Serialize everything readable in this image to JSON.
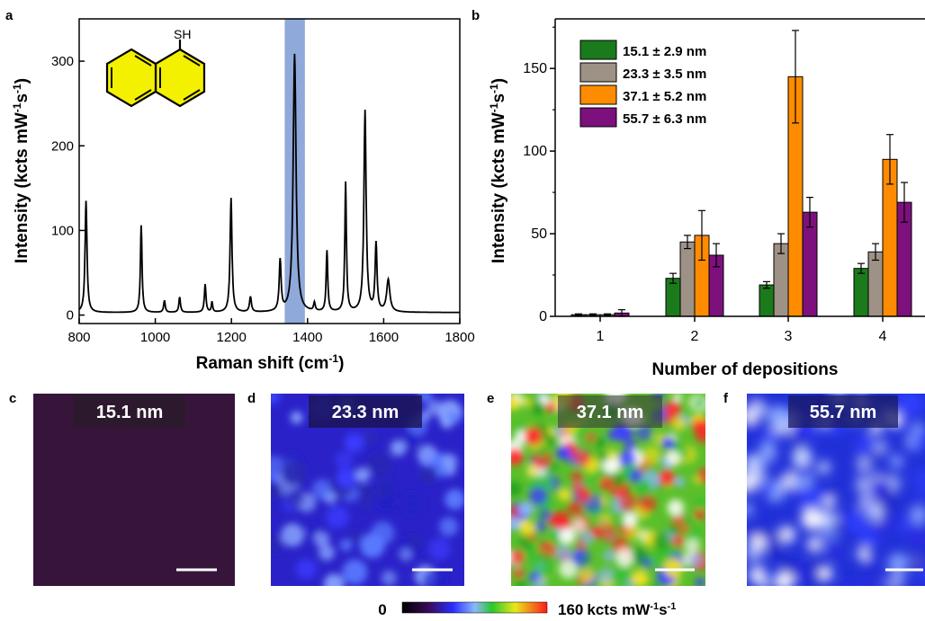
{
  "panels": {
    "a": "a",
    "b": "b",
    "c": "c",
    "d": "d",
    "e": "e",
    "f": "f"
  },
  "colors": {
    "spectrum": "#000000",
    "highlight": "#8fa9da",
    "molecule_fill": "#f3f000",
    "green": "#1b7a1b",
    "gray": "#9e9186",
    "orange": "#ff8c00",
    "purple": "#7d107d"
  },
  "molecule_label": "SH",
  "chart_data": [
    {
      "type": "line",
      "panel": "a",
      "xlabel": "Raman shift (cm",
      "xlabel_sup": "-1",
      "xlabel_end": ")",
      "ylabel": "Intensity (kcts mW",
      "ylabel_sup1": "-1",
      "ylabel_mid": "s",
      "ylabel_sup2": "-1",
      "ylabel_end": ")",
      "xlim": [
        800,
        1800
      ],
      "ylim": [
        -10,
        350
      ],
      "xticks": [
        800,
        1000,
        1200,
        1400,
        1600,
        1800
      ],
      "yticks": [
        0,
        100,
        200,
        300
      ],
      "highlight_band": [
        1340,
        1393
      ],
      "baseline": 3,
      "peaks": [
        {
          "x": 818,
          "h": 132,
          "w": 6
        },
        {
          "x": 963,
          "h": 103,
          "w": 5
        },
        {
          "x": 1024,
          "h": 14,
          "w": 5
        },
        {
          "x": 1064,
          "h": 18,
          "w": 5
        },
        {
          "x": 1131,
          "h": 33,
          "w": 5
        },
        {
          "x": 1149,
          "h": 12,
          "w": 4
        },
        {
          "x": 1199,
          "h": 135,
          "w": 6
        },
        {
          "x": 1250,
          "h": 18,
          "w": 6
        },
        {
          "x": 1328,
          "h": 60,
          "w": 6
        },
        {
          "x": 1366,
          "h": 305,
          "w": 9
        },
        {
          "x": 1418,
          "h": 10,
          "w": 5
        },
        {
          "x": 1451,
          "h": 72,
          "w": 5
        },
        {
          "x": 1500,
          "h": 153,
          "w": 5
        },
        {
          "x": 1551,
          "h": 238,
          "w": 7
        },
        {
          "x": 1580,
          "h": 80,
          "w": 6
        },
        {
          "x": 1612,
          "h": 38,
          "w": 10
        }
      ]
    },
    {
      "type": "bar",
      "panel": "b",
      "xlabel": "Number of depositions",
      "ylabel": "Intensity (kcts mW",
      "ylabel_sup1": "-1",
      "ylabel_mid": "s",
      "ylabel_sup2": "-1",
      "ylabel_end": ")",
      "categories": [
        "1",
        "2",
        "3",
        "4"
      ],
      "ylim": [
        0,
        180
      ],
      "yticks": [
        0,
        50,
        100,
        150
      ],
      "legend_position": "top-left",
      "series": [
        {
          "name": "15.1 ± 2.9 nm",
          "values": [
            1,
            23,
            19,
            29
          ],
          "errors": [
            0.5,
            3,
            2,
            3
          ]
        },
        {
          "name": "23.3 ± 3.5 nm",
          "values": [
            1,
            45,
            44,
            39
          ],
          "errors": [
            0.5,
            4,
            6,
            5
          ]
        },
        {
          "name": "37.1 ± 5.2 nm",
          "values": [
            1,
            49,
            145,
            95
          ],
          "errors": [
            0.5,
            15,
            28,
            15
          ]
        },
        {
          "name": "55.7 ± 6.3 nm",
          "values": [
            2,
            37,
            63,
            69
          ],
          "errors": [
            2,
            7,
            9,
            12
          ]
        }
      ]
    }
  ],
  "maps": [
    {
      "label": "15.1 nm",
      "level": 0.04
    },
    {
      "label": "23.3 nm",
      "level": 0.28
    },
    {
      "label": "37.1 nm",
      "level": 0.72
    },
    {
      "label": "55.7 nm",
      "level": 0.36
    }
  ],
  "colorbar": {
    "min_label": "0",
    "max_label": "160",
    "unit": "kcts mW",
    "sup1": "-1",
    "mid": "s",
    "sup2": "-1"
  }
}
